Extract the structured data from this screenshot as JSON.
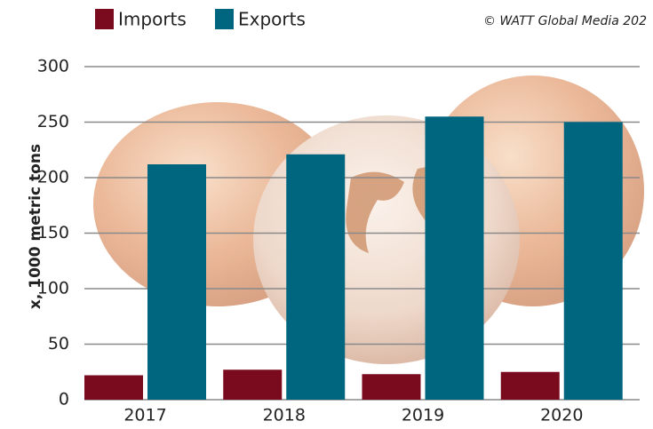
{
  "chart_data": {
    "type": "bar",
    "y_label": "x, 1000 metric tons",
    "credit": "© WATT Global Media 202",
    "categories": [
      "2017",
      "2018",
      "2019",
      "2020"
    ],
    "series": [
      {
        "name": "Imports",
        "color": "#7a0a1e",
        "values": [
          22,
          27,
          23,
          25
        ]
      },
      {
        "name": "Exports",
        "color": "#006680",
        "values": [
          212,
          221,
          255,
          250
        ]
      }
    ],
    "ylim": [
      0,
      300
    ],
    "yticks": [
      0,
      50,
      100,
      150,
      200,
      250,
      300
    ],
    "grid": true
  }
}
